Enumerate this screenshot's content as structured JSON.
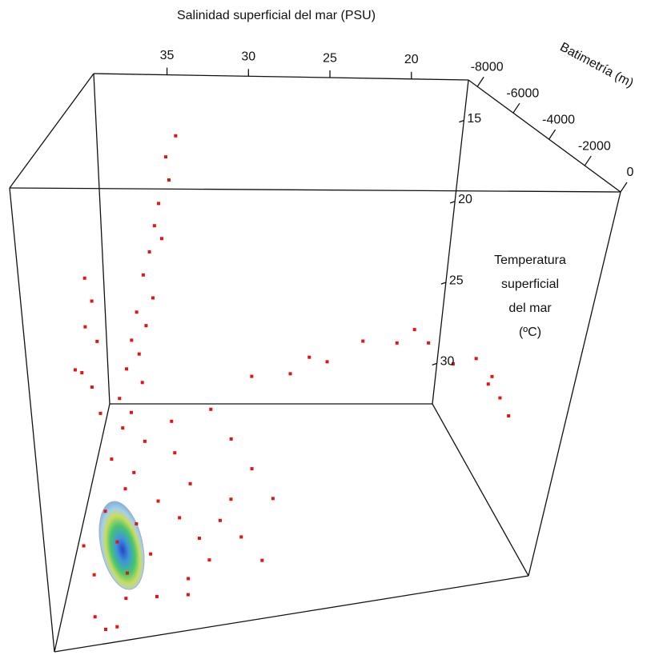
{
  "chart_data": {
    "type": "scatter3d",
    "title": "Salinidad superficial del mar (PSU)",
    "zlabel": "Batimetría (m)",
    "ylabel": [
      "Temperatura",
      "superficial",
      "del mar",
      "(ºC)"
    ],
    "color": "#e8120e",
    "xlim": [
      39.5,
      16.5
    ],
    "ylim": [
      12.5,
      32.5
    ],
    "zlim": [
      -8500,
      0
    ],
    "xticks": [
      35,
      30,
      25,
      20
    ],
    "yticks": [
      15,
      20,
      25,
      30
    ],
    "zticks": [
      -8000,
      -6000,
      -4000,
      -2000,
      0
    ],
    "x": [
      34,
      34.5,
      34.3,
      34.8,
      35,
      34.6,
      35.2,
      35.5,
      35,
      35.8,
      35.3,
      36,
      35.6,
      36.2,
      35.4,
      36.5,
      35.9,
      36.3,
      35.2,
      36.8,
      35.7,
      36.1,
      34.5,
      37,
      35.5,
      36.4,
      34.8,
      35.9,
      33.5,
      33,
      32.5,
      32,
      31.5,
      33.8,
      34,
      33,
      34.5,
      36,
      37.5,
      38,
      30,
      28,
      27,
      26,
      24,
      22,
      21,
      20,
      19,
      18,
      17.5,
      17,
      16.8,
      17.2,
      38.5,
      38.8,
      38.3,
      39,
      38.6,
      38.9,
      39.2,
      38.1,
      37.5,
      37,
      36.5,
      31,
      30,
      29,
      32,
      31,
      30.5,
      33,
      29.5
    ],
    "y": [
      14,
      15,
      16,
      17,
      18,
      18.5,
      19,
      20,
      21,
      21.5,
      22,
      22.5,
      23,
      23.5,
      24,
      24.5,
      25,
      25.5,
      26,
      26.5,
      27,
      27.5,
      28,
      28,
      28.5,
      29,
      29.5,
      30,
      29,
      28,
      29.5,
      30,
      29,
      27,
      26,
      30.5,
      31,
      31,
      30,
      29,
      24,
      24.5,
      24,
      24.5,
      24,
      24.5,
      24,
      25,
      25.5,
      25,
      26,
      26.5,
      27,
      25.8,
      22,
      23,
      24,
      25,
      26,
      21,
      24.5,
      27,
      31.5,
      32,
      32.2,
      26,
      27,
      28,
      25,
      27.5,
      29,
      31,
      30
    ],
    "z": [
      -6000,
      -5800,
      -5500,
      -5200,
      -5000,
      -4800,
      -4600,
      -4400,
      -4200,
      -4000,
      -3800,
      -3600,
      -3400,
      -3200,
      -3000,
      -2800,
      -2600,
      -2400,
      -2200,
      -2000,
      -1800,
      -1600,
      -1400,
      -1200,
      -1000,
      -800,
      -600,
      -400,
      -1500,
      -2000,
      -1000,
      -500,
      -1200,
      -2500,
      -3000,
      -300,
      -200,
      -300,
      -500,
      -800,
      -3000,
      -3500,
      -3800,
      -4000,
      -4500,
      -4800,
      -5000,
      -5200,
      -4500,
      -4250,
      -3800,
      -3500,
      -3000,
      -4000,
      -5100,
      -4800,
      -5000,
      -4500,
      -4700,
      -5300,
      -4200,
      -4400,
      -200,
      -100,
      -300,
      -2000,
      -1500,
      -1000,
      -2500,
      -700,
      -400,
      -100,
      -200
    ]
  }
}
